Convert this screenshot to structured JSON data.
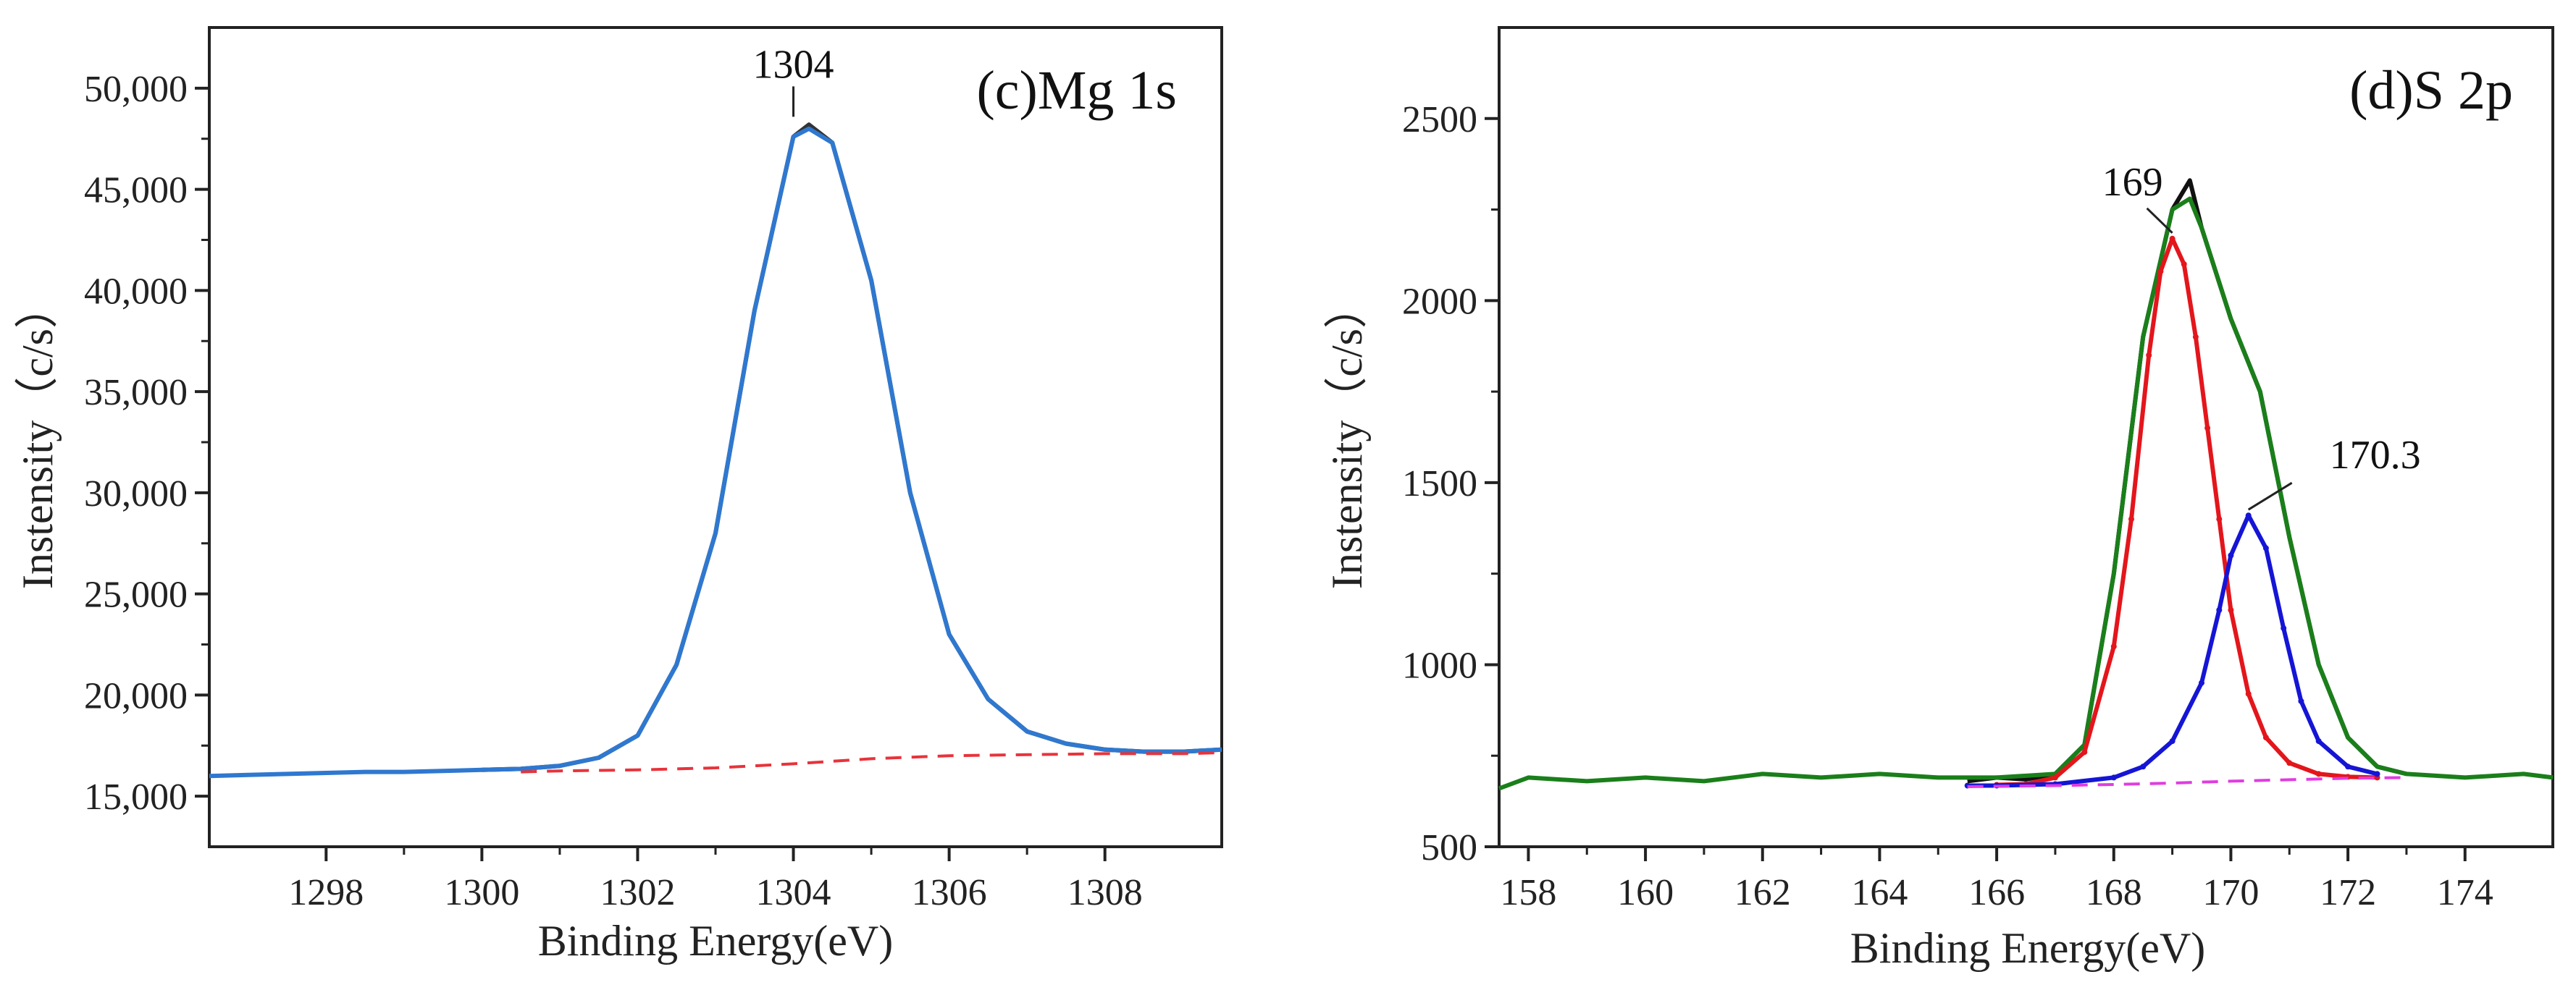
{
  "chart_data": [
    {
      "type": "line",
      "title": "(c)Mg 1s",
      "xlabel": "Binding Energy(eV)",
      "ylabel": "Instensity（c/s）",
      "xlim": [
        1296.5,
        1309.5
      ],
      "ylim": [
        12500,
        53000
      ],
      "xticks": [
        1298,
        1300,
        1302,
        1304,
        1306,
        1308
      ],
      "xtick_labels": [
        "1298",
        "1300",
        "1302",
        "1304",
        "1306",
        "1308"
      ],
      "yticks": [
        15000,
        20000,
        25000,
        30000,
        35000,
        40000,
        45000,
        50000
      ],
      "ytick_labels": [
        "15,000",
        "20,000",
        "25,000",
        "30,000",
        "35,000",
        "40,000",
        "45,000",
        "50,000"
      ],
      "grid": false,
      "annotations": [
        {
          "text": "1304",
          "x": 1304,
          "y": 48300
        }
      ],
      "series": [
        {
          "role": "raw",
          "color": "#333333",
          "style": "solid",
          "x": [
            1300.0,
            1300.5,
            1301.0,
            1301.5,
            1302.0,
            1302.5,
            1303.0,
            1303.5,
            1304.0,
            1304.2,
            1304.5,
            1305.0,
            1305.5,
            1306.0,
            1306.5,
            1307.0,
            1307.5,
            1308.0,
            1308.5,
            1309.0,
            1309.5
          ],
          "y": [
            16300,
            16350,
            16500,
            16900,
            18000,
            21500,
            28000,
            39000,
            47600,
            48200,
            47300,
            40500,
            30000,
            23000,
            19800,
            18200,
            17600,
            17300,
            17200,
            17200,
            17300
          ]
        },
        {
          "role": "fit",
          "color": "#2f78d0",
          "style": "solid",
          "x": [
            1296.5,
            1297.0,
            1297.5,
            1298.0,
            1298.5,
            1299.0,
            1299.5,
            1300.0,
            1300.5,
            1301.0,
            1301.5,
            1302.0,
            1302.5,
            1303.0,
            1303.5,
            1304.0,
            1304.2,
            1304.5,
            1305.0,
            1305.5,
            1306.0,
            1306.5,
            1307.0,
            1307.5,
            1308.0,
            1308.5,
            1309.0,
            1309.5
          ],
          "y": [
            16000,
            16050,
            16100,
            16150,
            16200,
            16200,
            16250,
            16300,
            16350,
            16500,
            16900,
            18000,
            21500,
            28000,
            39000,
            47600,
            48000,
            47300,
            40500,
            30000,
            23000,
            19800,
            18200,
            17600,
            17300,
            17200,
            17200,
            17300
          ]
        },
        {
          "role": "background",
          "color": "#e8333b",
          "style": "dashed",
          "x": [
            1300.5,
            1301.0,
            1302.0,
            1303.0,
            1304.0,
            1305.0,
            1306.0,
            1307.0,
            1308.0,
            1309.0,
            1309.5
          ],
          "y": [
            16200,
            16250,
            16300,
            16400,
            16600,
            16850,
            17000,
            17050,
            17100,
            17100,
            17150
          ]
        }
      ]
    },
    {
      "type": "line",
      "title": "(d)S 2p",
      "xlabel": "Binding Energy(eV)",
      "ylabel": "Instensity（c/s）",
      "xlim": [
        157.5,
        175.5
      ],
      "ylim": [
        500,
        2750
      ],
      "xticks": [
        158,
        160,
        162,
        164,
        166,
        168,
        170,
        172,
        174
      ],
      "xtick_labels": [
        "158",
        "160",
        "162",
        "164",
        "166",
        "168",
        "170",
        "172",
        "174"
      ],
      "yticks": [
        500,
        1000,
        1500,
        2000,
        2500
      ],
      "ytick_labels": [
        "500",
        "1000",
        "1500",
        "2000",
        "2500"
      ],
      "grid": false,
      "annotations": [
        {
          "text": "169",
          "x": 169.0,
          "y": 2170
        },
        {
          "text": "170.3",
          "x": 170.3,
          "y": 1410
        }
      ],
      "series": [
        {
          "role": "raw",
          "color": "#111111",
          "style": "solid",
          "x": [
            165.5,
            166.0,
            166.5,
            167.0,
            167.5,
            168.0,
            168.5,
            169.0,
            169.3,
            169.5,
            170.0,
            170.5,
            171.0,
            171.5,
            172.0,
            172.5,
            173.0
          ],
          "y": [
            680,
            690,
            685,
            700,
            780,
            1250,
            1900,
            2250,
            2330,
            2200,
            1950,
            1750,
            1350,
            1000,
            800,
            720,
            700
          ]
        },
        {
          "role": "envelope",
          "color": "#1a7f1a",
          "style": "solid",
          "x": [
            157.5,
            158.0,
            159.0,
            160.0,
            161.0,
            162.0,
            163.0,
            164.0,
            165.0,
            166.0,
            167.0,
            167.5,
            168.0,
            168.5,
            169.0,
            169.3,
            169.5,
            170.0,
            170.5,
            171.0,
            171.5,
            172.0,
            172.5,
            173.0,
            174.0,
            175.0,
            175.5
          ],
          "y": [
            660,
            690,
            680,
            690,
            680,
            700,
            690,
            700,
            690,
            690,
            700,
            780,
            1250,
            1900,
            2250,
            2280,
            2200,
            1950,
            1750,
            1350,
            1000,
            800,
            720,
            700,
            690,
            700,
            690
          ]
        },
        {
          "role": "peak",
          "name": "169",
          "color": "#e3161c",
          "style": "solid-markers",
          "x": [
            166.0,
            166.5,
            167.0,
            167.5,
            168.0,
            168.3,
            168.6,
            168.8,
            169.0,
            169.2,
            169.4,
            169.6,
            169.8,
            170.0,
            170.3,
            170.6,
            171.0,
            171.5,
            172.0,
            172.5
          ],
          "y": [
            670,
            672,
            690,
            760,
            1050,
            1400,
            1850,
            2080,
            2170,
            2100,
            1900,
            1650,
            1400,
            1150,
            920,
            800,
            730,
            700,
            692,
            690
          ]
        },
        {
          "role": "peak",
          "name": "170.3",
          "color": "#1515d6",
          "style": "solid-markers",
          "x": [
            165.5,
            166.0,
            167.0,
            168.0,
            168.5,
            169.0,
            169.5,
            169.8,
            170.0,
            170.3,
            170.6,
            170.9,
            171.2,
            171.5,
            172.0,
            172.5
          ],
          "y": [
            668,
            668,
            672,
            690,
            720,
            790,
            950,
            1150,
            1300,
            1410,
            1320,
            1100,
            900,
            790,
            720,
            700
          ]
        },
        {
          "role": "background",
          "color": "#e03ce0",
          "style": "dashed",
          "x": [
            165.5,
            166.0,
            167.0,
            168.0,
            169.0,
            170.0,
            171.0,
            172.0,
            173.0
          ],
          "y": [
            665,
            666,
            668,
            671,
            675,
            680,
            684,
            688,
            690
          ]
        }
      ]
    }
  ]
}
